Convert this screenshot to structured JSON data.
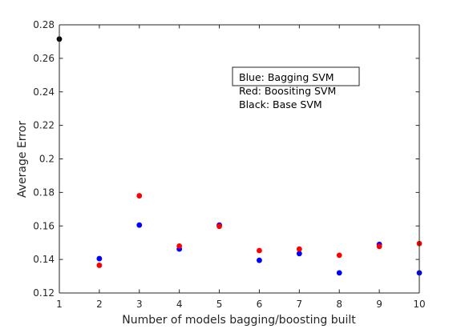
{
  "chart_data": {
    "type": "scatter",
    "title": "",
    "xlabel": "Number of models bagging/boosting built",
    "ylabel": "Average Error",
    "xlim": [
      1,
      10
    ],
    "ylim": [
      0.12,
      0.28
    ],
    "xticks": [
      1,
      2,
      3,
      4,
      5,
      6,
      7,
      8,
      9,
      10
    ],
    "yticks": [
      0.12,
      0.14,
      0.16,
      0.18,
      0.2,
      0.22,
      0.24,
      0.26,
      0.28
    ],
    "ytick_labels": [
      "0.12",
      "0.14",
      "0.16",
      "0.18",
      "0.2",
      "0.22",
      "0.24",
      "0.26",
      "0.28"
    ],
    "grid": false,
    "series": [
      {
        "color": "#0000ff",
        "x": [
          2,
          3,
          4,
          5,
          6,
          7,
          8,
          9,
          10
        ],
        "y": [
          0.1405,
          0.1605,
          0.1462,
          0.1605,
          0.1395,
          0.1435,
          0.132,
          0.149,
          0.132
        ]
      },
      {
        "color": "#ff0000",
        "x": [
          2,
          3,
          4,
          5,
          6,
          7,
          8,
          9,
          10
        ],
        "y": [
          0.1365,
          0.178,
          0.148,
          0.1598,
          0.1453,
          0.1462,
          0.1425,
          0.1478,
          0.1495
        ]
      },
      {
        "color": "#000000",
        "x": [
          1
        ],
        "y": [
          0.2715
        ]
      }
    ],
    "legend": {
      "placement": "top-right",
      "lines": [
        "Blue: Bagging SVM",
        "Red: Boositing SVM",
        "Black: Base SVM"
      ]
    }
  }
}
